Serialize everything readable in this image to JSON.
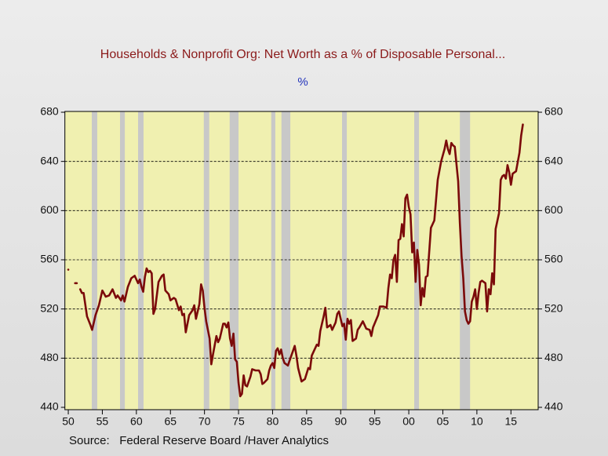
{
  "chart_data": {
    "type": "line",
    "title": "Households & Nonprofit Org: Net Worth as a % of Disposable Personal...",
    "subtitle": "%",
    "source": "Source:   Federal Reserve Board /Haver Analytics",
    "xlim": [
      1949.5,
      2019
    ],
    "ylim": [
      440,
      680
    ],
    "yticks": [
      440,
      480,
      520,
      560,
      600,
      640,
      680
    ],
    "xticks": [
      {
        "value": 1950,
        "label": "50"
      },
      {
        "value": 1955,
        "label": "55"
      },
      {
        "value": 1960,
        "label": "60"
      },
      {
        "value": 1965,
        "label": "65"
      },
      {
        "value": 1970,
        "label": "70"
      },
      {
        "value": 1975,
        "label": "75"
      },
      {
        "value": 1980,
        "label": "80"
      },
      {
        "value": 1985,
        "label": "85"
      },
      {
        "value": 1990,
        "label": "90"
      },
      {
        "value": 1995,
        "label": "95"
      },
      {
        "value": 2000,
        "label": "00"
      },
      {
        "value": 2005,
        "label": "05"
      },
      {
        "value": 2010,
        "label": "10"
      },
      {
        "value": 2015,
        "label": "15"
      }
    ],
    "grid": true,
    "background_color": "#f0f0b0",
    "recession_color": "#c8c8c8",
    "recessions": [
      [
        1953.45,
        1954.25
      ],
      [
        1957.6,
        1958.3
      ],
      [
        1960.25,
        1961.05
      ],
      [
        1969.9,
        1970.7
      ],
      [
        1973.7,
        1975.0
      ],
      [
        1979.8,
        1980.4
      ],
      [
        1981.3,
        1982.6
      ],
      [
        1990.2,
        1990.9
      ],
      [
        2000.8,
        2001.5
      ],
      [
        2007.5,
        2009.0
      ]
    ],
    "x": [
      1950,
      1950.5,
      1951,
      1951.25,
      1951.5,
      1951.75,
      1952,
      1952.25,
      1952.75,
      1953.25,
      1953.5,
      1953.75,
      1954,
      1954.5,
      1955,
      1955.5,
      1956,
      1956.5,
      1957,
      1957.25,
      1957.75,
      1958,
      1958.25,
      1958.75,
      1959.25,
      1959.75,
      1960.25,
      1960.5,
      1960.75,
      1961,
      1961.25,
      1961.5,
      1961.75,
      1962,
      1962.25,
      1962.5,
      1962.75,
      1963.25,
      1963.75,
      1964,
      1964.25,
      1964.75,
      1965,
      1965.5,
      1965.75,
      1966.25,
      1966.5,
      1966.75,
      1967,
      1967.25,
      1967.75,
      1968.25,
      1968.5,
      1968.75,
      1969.25,
      1969.5,
      1969.75,
      1970,
      1970.25,
      1970.75,
      1971,
      1971.25,
      1971.75,
      1972,
      1972.25,
      1972.75,
      1973,
      1973.25,
      1973.5,
      1973.75,
      1974,
      1974.25,
      1974.5,
      1974.75,
      1975,
      1975.25,
      1975.5,
      1975.75,
      1976,
      1976.25,
      1976.75,
      1977,
      1977.5,
      1978,
      1978.25,
      1978.5,
      1978.75,
      1979.25,
      1979.5,
      1979.75,
      1980,
      1980.25,
      1980.5,
      1980.75,
      1981,
      1981.25,
      1981.5,
      1981.75,
      1982.25,
      1982.5,
      1982.75,
      1983.25,
      1983.5,
      1983.75,
      1984.25,
      1984.75,
      1985.25,
      1985.5,
      1985.75,
      1986.5,
      1986.75,
      1987,
      1987.5,
      1987.75,
      1988,
      1988.5,
      1988.75,
      1989.25,
      1989.5,
      1989.75,
      1990.25,
      1990.5,
      1990.75,
      1991,
      1991.25,
      1991.5,
      1991.75,
      1992.25,
      1992.5,
      1992.75,
      1993.25,
      1993.75,
      1994.25,
      1994.5,
      1994.75,
      1995.5,
      1995.75,
      1996.25,
      1996.75,
      1997,
      1997.25,
      1997.5,
      1997.75,
      1998,
      1998.25,
      1998.5,
      1998.75,
      1999,
      1999.25,
      1999.5,
      1999.75,
      2000,
      2000.25,
      2000.5,
      2000.75,
      2001,
      2001.25,
      2001.5,
      2001.75,
      2002,
      2002.25,
      2002.5,
      2002.75,
      2003.25,
      2003.75,
      2004.25,
      2004.75,
      2005.25,
      2005.5,
      2005.75,
      2006,
      2006.25,
      2006.5,
      2006.75,
      2007.25,
      2007.5,
      2007.75,
      2008,
      2008.25,
      2008.5,
      2008.75,
      2009,
      2009.25,
      2009.5,
      2009.75,
      2010,
      2010.25,
      2010.5,
      2010.75,
      2011.25,
      2011.5,
      2011.75,
      2012,
      2012.25,
      2012.5,
      2012.75,
      2013.25,
      2013.5,
      2013.75,
      2014,
      2014.25,
      2014.5,
      2014.75,
      2015,
      2015.25,
      2015.75,
      2016.25,
      2016.5,
      2016.75
    ],
    "series": [
      {
        "name": "Net Worth as a % of Disposable Personal Income",
        "color": "#7b0a0a",
        "values": [
          552,
          null,
          541,
          541,
          null,
          536,
          533,
          533,
          514,
          507,
          503,
          509,
          515,
          523,
          535,
          530,
          531,
          536,
          529,
          531,
          527,
          531,
          526,
          538,
          545,
          547,
          541,
          544,
          538,
          534,
          546,
          553,
          550,
          551,
          549,
          516,
          520,
          542,
          547,
          548,
          535,
          532,
          527,
          529,
          528,
          519,
          522,
          515,
          516,
          501,
          515,
          519,
          523,
          512,
          524,
          540,
          535,
          521,
          510,
          496,
          475,
          483,
          498,
          493,
          496,
          508,
          508,
          505,
          509,
          496,
          490,
          500,
          479,
          477,
          460,
          449,
          451,
          466,
          458,
          457,
          465,
          471,
          470,
          470,
          467,
          459,
          460,
          463,
          470,
          474,
          476,
          472,
          486,
          488,
          483,
          487,
          480,
          476,
          474,
          478,
          482,
          490,
          482,
          472,
          461,
          463,
          472,
          471,
          482,
          491,
          490,
          502,
          514,
          521,
          505,
          507,
          503,
          509,
          516,
          518,
          506,
          508,
          495,
          512,
          508,
          511,
          494,
          496,
          503,
          505,
          510,
          504,
          503,
          498,
          505,
          515,
          522,
          522,
          521,
          537,
          548,
          545,
          560,
          564,
          542,
          576,
          577,
          589,
          579,
          610,
          613,
          603,
          597,
          566,
          574,
          542,
          568,
          556,
          523,
          537,
          530,
          546,
          547,
          586,
          592,
          625,
          640,
          650,
          657,
          650,
          646,
          655,
          653,
          652,
          624,
          590,
          563,
          545,
          518,
          511,
          508,
          510,
          526,
          530,
          536,
          520,
          533,
          542,
          543,
          541,
          518,
          536,
          532,
          549,
          540,
          585,
          598,
          625,
          628,
          629,
          626,
          637,
          631,
          621,
          630,
          632,
          647,
          661,
          670
        ]
      }
    ]
  }
}
